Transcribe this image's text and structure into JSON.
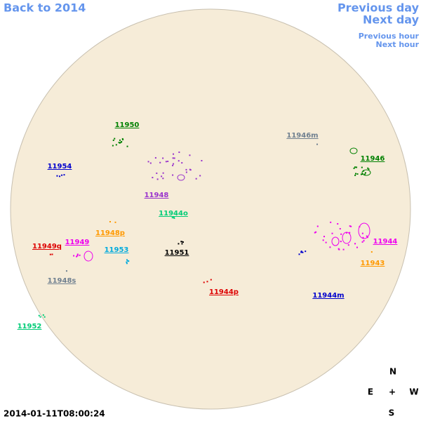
{
  "nav": {
    "back": "Back to 2014",
    "previous_day": "Previous day",
    "next_day": "Next day",
    "previous_hour": "Previous hour",
    "next_hour": "Next hour"
  },
  "regions": [
    {
      "label": "11950",
      "color": "#008000"
    },
    {
      "label": "11954",
      "color": "#0000cc"
    },
    {
      "label": "11948",
      "color": "#9933cc"
    },
    {
      "label": "11946m",
      "color": "#708090"
    },
    {
      "label": "11946",
      "color": "#008000"
    },
    {
      "label": "11944o",
      "color": "#00cc77"
    },
    {
      "label": "11948p",
      "color": "#ff9900"
    },
    {
      "label": "11949q",
      "color": "#dd0000"
    },
    {
      "label": "11949",
      "color": "#ee00ee"
    },
    {
      "label": "11953",
      "color": "#00aadd"
    },
    {
      "label": "11951",
      "color": "#000000"
    },
    {
      "label": "11944",
      "color": "#ee00ee"
    },
    {
      "label": "11943",
      "color": "#ff9900"
    },
    {
      "label": "11948s",
      "color": "#708090"
    },
    {
      "label": "11944p",
      "color": "#dd0000"
    },
    {
      "label": "11944m",
      "color": "#0000cc"
    },
    {
      "label": "11952",
      "color": "#00cc77"
    }
  ],
  "compass": {
    "north": "N",
    "east": "E",
    "center": "+",
    "west": "W",
    "south": "S"
  },
  "timestamp": "2014-01-11T08:00:24"
}
